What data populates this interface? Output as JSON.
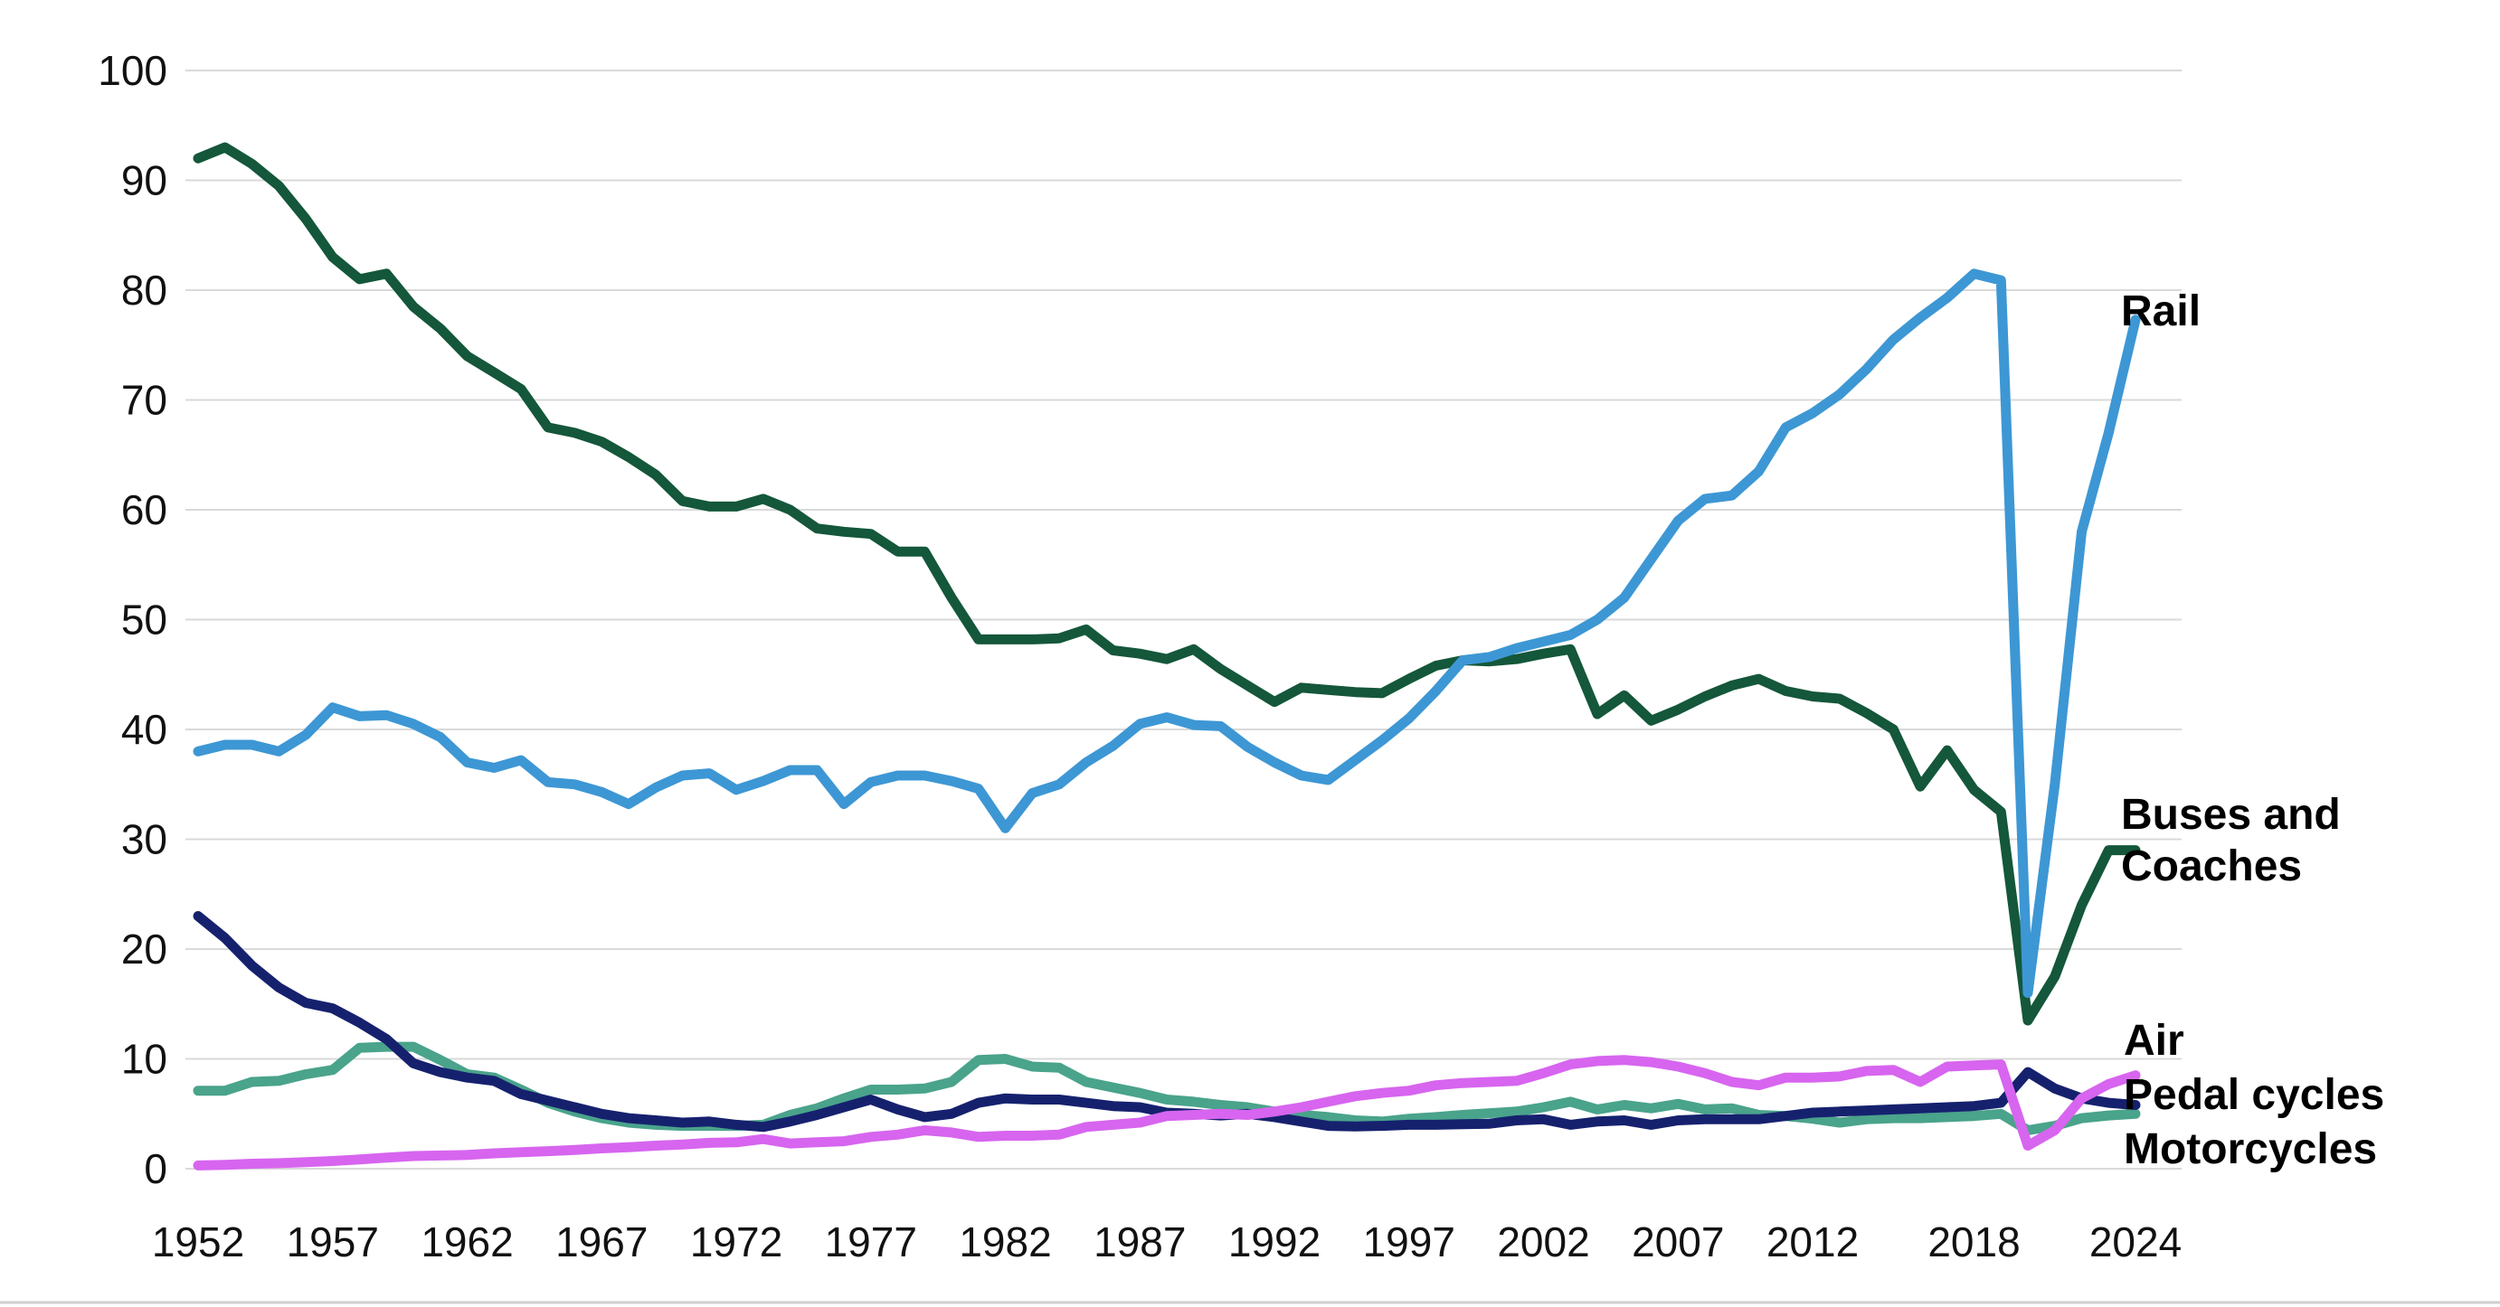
{
  "chart_data": {
    "type": "line",
    "title": "",
    "xlabel": "",
    "ylabel": "",
    "x_start_year": 1952,
    "x_end_year": 2024,
    "xlim": [
      1952,
      2024
    ],
    "ylim": [
      0,
      100
    ],
    "grid": "horizontal",
    "gridline_color": "#d9d9d9",
    "background_color": "#ffffff",
    "legend_position": "end-of-line-labels-right",
    "y_ticks": [
      0,
      10,
      20,
      30,
      40,
      50,
      60,
      70,
      80,
      90,
      100
    ],
    "y_tick_labels": [
      "0",
      "10",
      "20",
      "30",
      "40",
      "50",
      "60",
      "70",
      "80",
      "90",
      "100"
    ],
    "x_tick_years": [
      1952,
      1957,
      1962,
      1967,
      1972,
      1977,
      1982,
      1987,
      1992,
      1997,
      2002,
      2007,
      2012,
      2018,
      2024
    ],
    "x_tick_labels": [
      "1952",
      "1957",
      "1962",
      "1967",
      "1972",
      "1977",
      "1982",
      "1987",
      "1992",
      "1997",
      "2002",
      "2007",
      "2012",
      "2018",
      "2024"
    ],
    "series": [
      {
        "name": "Motorcycles",
        "color": "#4aa38b",
        "label_lines": [
          "Motorcycles"
        ],
        "values": [
          7.1,
          7.1,
          7.9,
          8.0,
          8.6,
          9.0,
          11.0,
          11.1,
          11.1,
          9.9,
          8.6,
          8.3,
          7.2,
          6.0,
          5.2,
          4.6,
          4.2,
          4.0,
          3.9,
          3.9,
          3.9,
          4.0,
          4.9,
          5.5,
          6.4,
          7.2,
          7.2,
          7.3,
          7.9,
          9.9,
          10.0,
          9.3,
          9.2,
          7.9,
          7.4,
          6.9,
          6.3,
          6.1,
          5.8,
          5.6,
          5.2,
          4.9,
          4.7,
          4.4,
          4.3,
          4.55,
          4.7,
          4.9,
          5.05,
          5.2,
          5.6,
          6.1,
          5.4,
          5.8,
          5.5,
          5.9,
          5.4,
          5.5,
          4.9,
          4.8,
          4.55,
          4.2,
          4.5,
          4.6,
          4.6,
          4.7,
          4.8,
          5.0,
          3.5,
          3.9,
          4.6,
          4.85,
          5.0
        ]
      },
      {
        "name": "Pedal cycles",
        "color": "#16216e",
        "label_lines": [
          "Pedal cycles"
        ],
        "values": [
          23.0,
          21.0,
          18.5,
          16.5,
          15.1,
          14.6,
          13.3,
          11.8,
          9.6,
          8.8,
          8.3,
          8.0,
          6.8,
          6.2,
          5.6,
          5.0,
          4.6,
          4.4,
          4.2,
          4.3,
          4.0,
          3.8,
          4.3,
          4.9,
          5.6,
          6.3,
          5.4,
          4.7,
          5.0,
          6.0,
          6.4,
          6.3,
          6.3,
          6.0,
          5.7,
          5.6,
          5.1,
          5.0,
          4.85,
          5.0,
          4.7,
          4.3,
          3.9,
          3.85,
          3.9,
          4.0,
          4.0,
          4.05,
          4.1,
          4.4,
          4.5,
          4.0,
          4.3,
          4.4,
          4.0,
          4.4,
          4.5,
          4.5,
          4.5,
          4.8,
          5.1,
          5.2,
          5.3,
          5.4,
          5.5,
          5.6,
          5.7,
          6.0,
          8.8,
          7.3,
          6.4,
          6.0,
          5.8
        ]
      },
      {
        "name": "Air",
        "color": "#d765ef",
        "label_lines": [
          "Air"
        ],
        "values": [
          0.3,
          0.35,
          0.45,
          0.5,
          0.6,
          0.7,
          0.85,
          1.0,
          1.15,
          1.2,
          1.25,
          1.4,
          1.5,
          1.6,
          1.7,
          1.85,
          1.95,
          2.1,
          2.2,
          2.35,
          2.4,
          2.7,
          2.3,
          2.4,
          2.5,
          2.9,
          3.1,
          3.5,
          3.3,
          2.9,
          3.0,
          3.0,
          3.1,
          3.8,
          4.0,
          4.2,
          4.8,
          4.9,
          5.0,
          4.9,
          5.2,
          5.6,
          6.1,
          6.6,
          6.9,
          7.1,
          7.6,
          7.8,
          7.9,
          8.0,
          8.7,
          9.5,
          9.8,
          9.9,
          9.7,
          9.3,
          8.7,
          7.9,
          7.6,
          8.3,
          8.3,
          8.4,
          8.9,
          9.0,
          7.9,
          9.3,
          9.4,
          9.5,
          2.1,
          3.5,
          6.4,
          7.7,
          8.5
        ]
      },
      {
        "name": "Buses and Coaches",
        "color": "#14573a",
        "label_lines": [
          "Buses and",
          "Coaches"
        ],
        "values": [
          92.0,
          93.0,
          91.5,
          89.5,
          86.5,
          83.0,
          81.0,
          81.5,
          78.5,
          76.5,
          74.0,
          72.5,
          71.0,
          67.5,
          67.0,
          66.2,
          64.8,
          63.2,
          60.8,
          60.3,
          60.3,
          61.0,
          60.0,
          58.3,
          58.0,
          57.8,
          56.2,
          56.2,
          52.0,
          48.2,
          48.2,
          48.2,
          48.3,
          49.1,
          47.2,
          46.9,
          46.4,
          47.3,
          45.5,
          44.0,
          42.5,
          43.8,
          43.6,
          43.4,
          43.3,
          44.6,
          45.8,
          46.3,
          46.2,
          46.4,
          46.9,
          47.3,
          41.4,
          43.1,
          40.8,
          41.8,
          43.0,
          44.0,
          44.6,
          43.5,
          43.0,
          42.8,
          41.5,
          40.0,
          34.8,
          38.1,
          34.5,
          32.5,
          13.5,
          17.5,
          24.0,
          29.0,
          29.0
        ]
      },
      {
        "name": "Rail",
        "color": "#3d97d4",
        "label_lines": [
          "Rail"
        ],
        "values": [
          38.0,
          38.6,
          38.6,
          38.0,
          39.5,
          42.0,
          41.2,
          41.3,
          40.5,
          39.3,
          37.0,
          36.5,
          37.2,
          35.2,
          35.0,
          34.3,
          33.2,
          34.7,
          35.8,
          36.0,
          34.5,
          35.3,
          36.3,
          36.3,
          33.2,
          35.2,
          35.8,
          35.8,
          35.3,
          34.6,
          31.0,
          34.2,
          35.0,
          37.0,
          38.5,
          40.5,
          41.1,
          40.4,
          40.3,
          38.4,
          37.0,
          35.8,
          35.4,
          37.2,
          39.0,
          41.0,
          43.5,
          46.3,
          46.6,
          47.4,
          48.0,
          48.6,
          50.0,
          52.0,
          55.5,
          59.0,
          61.0,
          61.3,
          63.5,
          67.5,
          68.8,
          70.5,
          72.8,
          75.5,
          77.5,
          79.3,
          81.5,
          80.9,
          16.0,
          35.0,
          58.0,
          67.0,
          77.3
        ]
      }
    ]
  }
}
